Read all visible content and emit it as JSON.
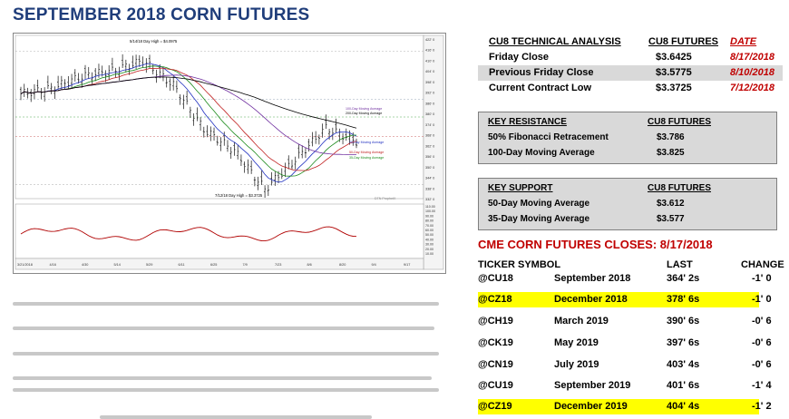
{
  "title": "SEPTEMBER 2018 CORN FUTURES",
  "chart": {
    "top_annotation": "5/14/18 Day High = $4.0975",
    "bottom_annotation": "7/12/18 Day High = $3.3725",
    "ma_labels": [
      "100-Day Moving Average",
      "200-Day Moving Average",
      "20-Day Moving Average",
      "50-Day Moving Average",
      "35-Day Moving Average"
    ],
    "x_ticks": [
      "3/21/2018",
      "4/16",
      "4/30",
      "5/14",
      "5/29",
      "6/11",
      "6/25",
      "7/9",
      "7/23",
      "8/6",
      "8/20",
      "9/4",
      "9/17"
    ],
    "price_ticks": [
      "422' 0",
      "416' 0",
      "410' 0",
      "404' 0",
      "398' 0",
      "392' 0",
      "386' 0",
      "380' 0",
      "374' 0",
      "368' 0",
      "362' 0",
      "356' 0",
      "350' 0",
      "344' 0",
      "338' 0",
      "332' 0"
    ],
    "osc_ticks": [
      "110.00",
      "100.00",
      "90.00",
      "80.00",
      "70.00",
      "60.00",
      "50.00",
      "40.00",
      "30.00",
      "20.00",
      "10.00"
    ],
    "brand": "DTN ProphetX"
  },
  "chart_data": {
    "type": "candlestick",
    "x": [
      "3/21",
      "4/2",
      "4/16",
      "4/30",
      "5/14",
      "5/29",
      "6/11",
      "6/25",
      "7/9",
      "7/23",
      "8/6",
      "8/17"
    ],
    "close": [
      391,
      394,
      401,
      404,
      409.75,
      396,
      371,
      359,
      337.25,
      354,
      372,
      364.25
    ],
    "ylim": [
      332,
      424
    ],
    "ylabel": "",
    "series": [
      {
        "name": "20-Day Moving Average",
        "color": "#2030c0"
      },
      {
        "name": "35-Day Moving Average",
        "color": "#1a8a1a"
      },
      {
        "name": "50-Day Moving Average",
        "color": "#c02020"
      },
      {
        "name": "100-Day Moving Average",
        "color": "#7030a0"
      },
      {
        "name": "200-Day Moving Average",
        "color": "#000000"
      }
    ]
  },
  "technical": {
    "headers": [
      "CU8 TECHNICAL ANALYSIS",
      "CU8 FUTURES",
      "DATE"
    ],
    "rows": [
      {
        "label": "Friday Close",
        "value": "$3.6425",
        "date": "8/17/2018"
      },
      {
        "label": "Previous Friday Close",
        "value": "$3.5775",
        "date": "8/10/2018"
      },
      {
        "label": "Current Contract Low",
        "value": "$3.3725",
        "date": "7/12/2018"
      }
    ]
  },
  "resistance": {
    "headers": [
      "KEY RESISTANCE",
      "CU8 FUTURES"
    ],
    "rows": [
      {
        "label": "50% Fibonacci Retracement",
        "value": "$3.786"
      },
      {
        "label": "100-Day Moving Average",
        "value": "$3.825"
      }
    ]
  },
  "support": {
    "headers": [
      "KEY SUPPORT",
      "CU8 FUTURES"
    ],
    "rows": [
      {
        "label": "50-Day Moving Average",
        "value": "$3.612"
      },
      {
        "label": "35-Day Moving Average",
        "value": "$3.577"
      }
    ]
  },
  "cme": {
    "title": "CME CORN FUTURES CLOSES:  8/17/2018",
    "headers": [
      "TICKER SYMBOL",
      "LAST",
      "CHANGE"
    ],
    "rows": [
      {
        "ticker": "@CU18",
        "month": "September 2018",
        "last": "364' 2s",
        "change": "-1' 0",
        "highlight": false
      },
      {
        "ticker": "@CZ18",
        "month": "December 2018",
        "last": "378' 6s",
        "change": "-1' 0",
        "highlight": true
      },
      {
        "ticker": "@CH19",
        "month": "March 2019",
        "last": "390' 6s",
        "change": "-0' 6",
        "highlight": false
      },
      {
        "ticker": "@CK19",
        "month": "May 2019",
        "last": "397' 6s",
        "change": "-0' 6",
        "highlight": false
      },
      {
        "ticker": "@CN19",
        "month": "July 2019",
        "last": "403' 4s",
        "change": "-0' 6",
        "highlight": false
      },
      {
        "ticker": "@CU19",
        "month": "September 2019",
        "last": "401' 6s",
        "change": "-1' 4",
        "highlight": false
      },
      {
        "ticker": "@CZ19",
        "month": "December 2019",
        "last": "404' 4s",
        "change": "-1' 2",
        "highlight": true
      }
    ]
  }
}
